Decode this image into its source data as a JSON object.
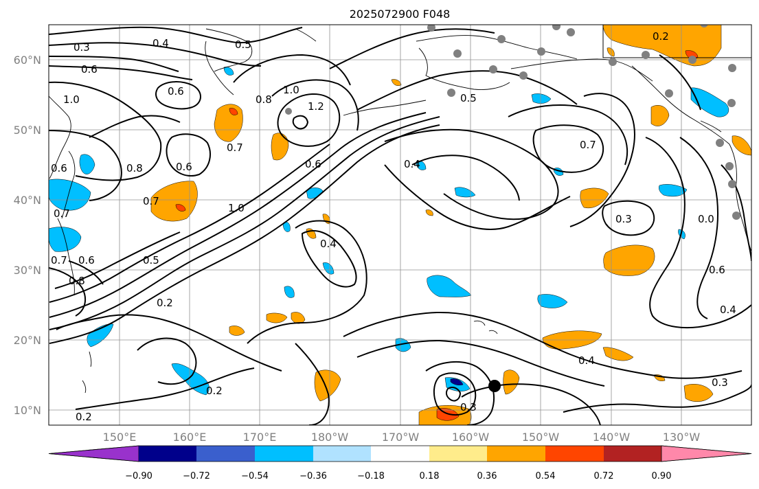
{
  "title": "2025072900 F048",
  "lat_labels": [
    "60°N",
    "50°N",
    "40°N",
    "30°N",
    "20°N",
    "10°N"
  ],
  "lon_labels": [
    "150°E",
    "160°E",
    "170°E",
    "180°W",
    "170°W",
    "160°W",
    "150°W",
    "140°W",
    "130°W"
  ],
  "colorbar": {
    "tick_labels": [
      "−0.90",
      "−0.72",
      "−0.54",
      "−0.36",
      "−0.18",
      "0.18",
      "0.36",
      "0.54",
      "0.72",
      "0.90"
    ],
    "colors": [
      "#9932cc",
      "#00008b",
      "#3a5fcd",
      "#00bfff",
      "#b0e2ff",
      "#ffffff",
      "#ffec8b",
      "#ffa500",
      "#ff4500",
      "#b22222",
      "#ff88aa"
    ]
  },
  "contour_labels": [
    "0.3",
    "0.4",
    "0.5",
    "0.6",
    "1.0",
    "0.6",
    "0.7",
    "0.8",
    "1.0",
    "1.2",
    "0.5",
    "0.2",
    "0.6",
    "0.7",
    "0.8",
    "0.6",
    "0.7",
    "1.0",
    "0.6",
    "0.4",
    "0.7",
    "0.7",
    "0.6",
    "0.8",
    "0.5",
    "0.4",
    "0.2",
    "0.2",
    "0.3",
    "0.4",
    "0.3",
    "0.6",
    "0.4",
    "0.3",
    "0.2",
    "0.0"
  ],
  "colors": {
    "grid": "#909090",
    "contour": "#000000",
    "station_gray": "#808080",
    "storm_marker": "#000000"
  }
}
